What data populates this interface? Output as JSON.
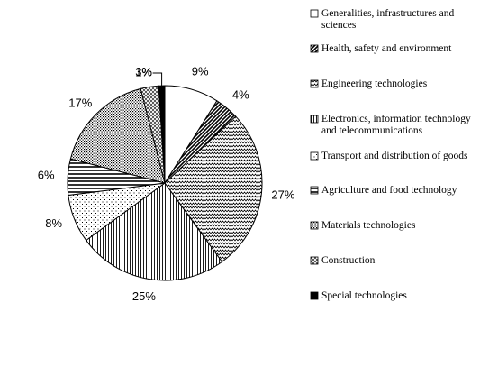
{
  "chart_data": {
    "type": "pie",
    "slices": [
      {
        "label": "Generalities, infrastructures and sciences",
        "value": 9,
        "display": "9%",
        "pattern": "white"
      },
      {
        "label": "Health, safety and environment",
        "value": 4,
        "display": "4%",
        "pattern": "diag-thick"
      },
      {
        "label": "Engineering technologies",
        "value": 27,
        "display": "27%",
        "pattern": "zigzag"
      },
      {
        "label": "Electronics, information technology and telecommunications",
        "value": 25,
        "display": "25%",
        "pattern": "vlines"
      },
      {
        "label": "Transport and distribution of goods",
        "value": 8,
        "display": "8%",
        "pattern": "sparse-dots"
      },
      {
        "label": "Agriculture and food technology",
        "value": 6,
        "display": "6%",
        "pattern": "hlines"
      },
      {
        "label": "Materials technologies",
        "value": 17,
        "display": "17%",
        "pattern": "dense-dots"
      },
      {
        "label": "Construction",
        "value": 3,
        "display": "3%",
        "pattern": "crosshatch"
      },
      {
        "label": "Special technologies",
        "value": 1,
        "display": "1%",
        "pattern": "black"
      }
    ],
    "legend": {
      "placement": "right",
      "entries": [
        "Generalities, infrastructures and sciences",
        "Health, safety and environment",
        "Engineering technologies",
        "Electronics, information technology and telecommunications",
        "Transport and distribution of goods",
        "Agriculture and food technology",
        "Materials technologies",
        "Construction",
        "Special technologies"
      ]
    },
    "start_angle": "12 o'clock",
    "direction": "clockwise"
  }
}
